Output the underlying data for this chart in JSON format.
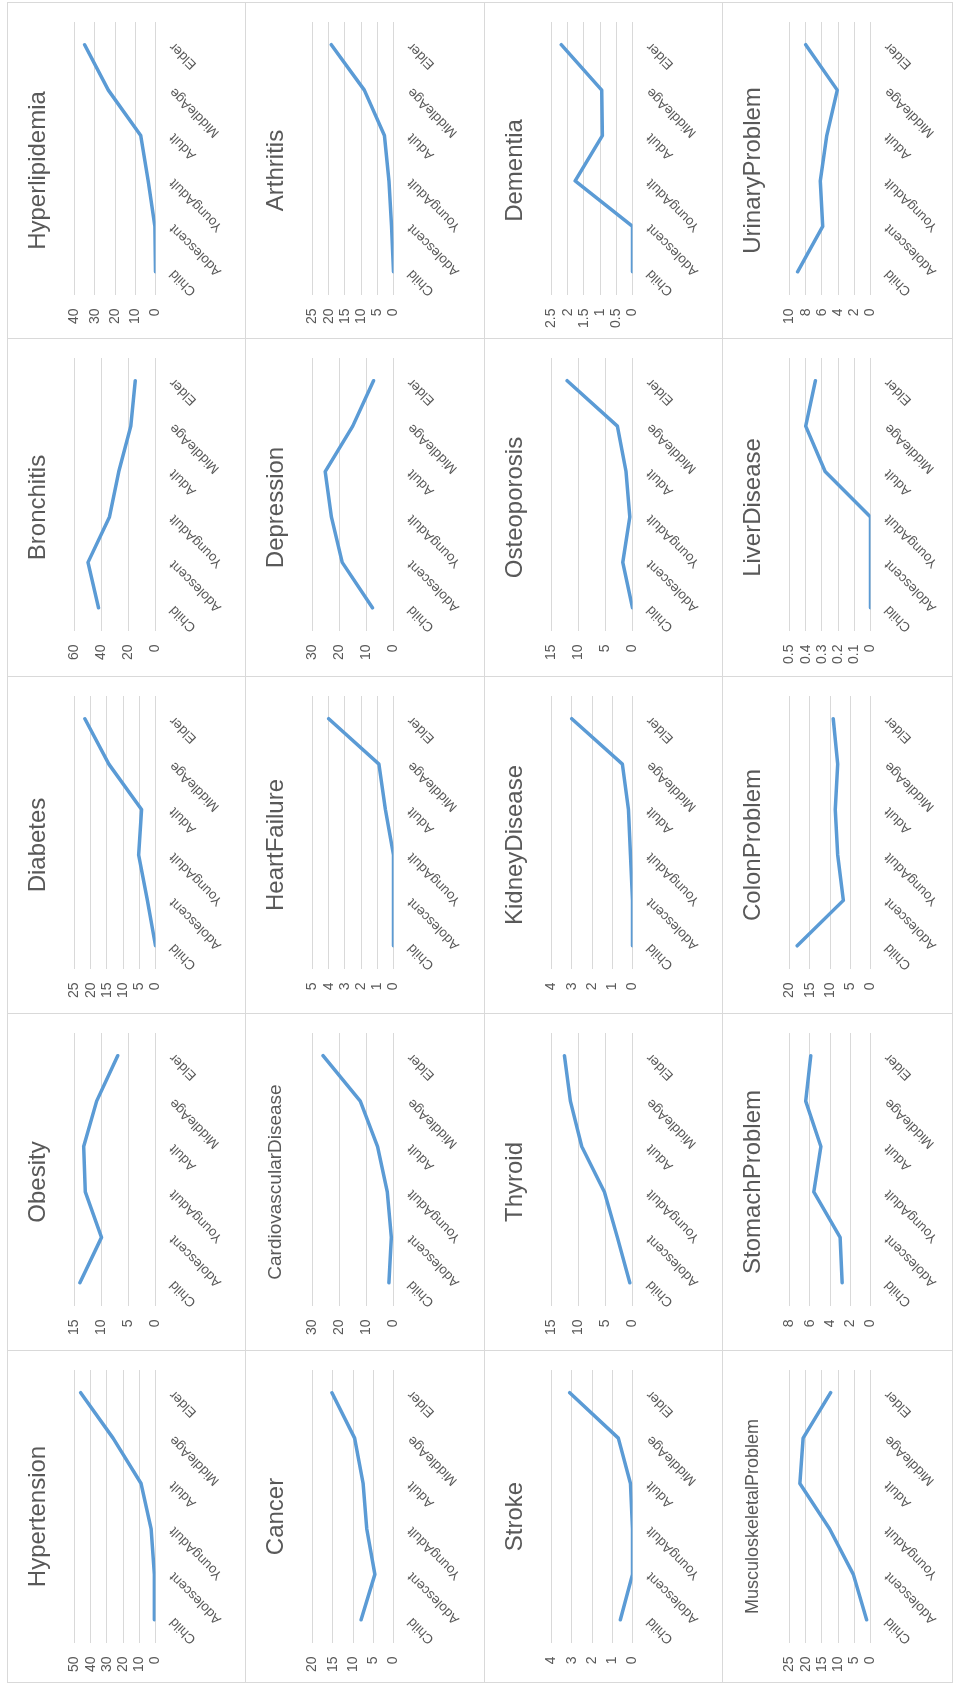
{
  "chart_data": [
    {
      "type": "line",
      "orientation": "horizontal",
      "title": "Hyperlipidemia",
      "categories": [
        "Elder",
        "MiddleAge",
        "Adult",
        "YoungAdult",
        "Adolescent",
        "Child"
      ],
      "values": [
        35,
        23.3,
        7.3,
        3.6,
        0.3,
        0
      ],
      "color": "#5b9bd5",
      "xlim": [
        40,
        0
      ],
      "xticks": [
        0,
        10,
        20,
        30,
        40
      ],
      "grid": "x"
    },
    {
      "type": "line",
      "orientation": "horizontal",
      "title": "Arthritis",
      "categories": [
        "Elder",
        "MiddleAge",
        "Adult",
        "YoungAdult",
        "Adolescent",
        "Child"
      ],
      "values": [
        19.2,
        9,
        2.8,
        1.4,
        0.6,
        0
      ],
      "color": "#5b9bd5",
      "xlim": [
        25,
        0
      ],
      "xticks": [
        0,
        5,
        10,
        15,
        20,
        25
      ],
      "grid": "x"
    },
    {
      "type": "line",
      "orientation": "horizontal",
      "title": "Dementia",
      "categories": [
        "Elder",
        "MiddleAge",
        "Adult",
        "YoungAdult",
        "Adolescent",
        "Child"
      ],
      "values": [
        2.2,
        0.95,
        0.93,
        1.77,
        0,
        0
      ],
      "color": "#5b9bd5",
      "xlim": [
        2.5,
        0
      ],
      "xticks": [
        0,
        0.5,
        1,
        1.5,
        2,
        2.5
      ],
      "grid": "x"
    },
    {
      "type": "line",
      "orientation": "horizontal",
      "title": "UrinaryProblem",
      "categories": [
        "Elder",
        "MiddleAge",
        "Adult",
        "YoungAdult",
        "Adolescent",
        "Child"
      ],
      "values": [
        8,
        4.1,
        5.4,
        6.2,
        5.9,
        9
      ],
      "color": "#5b9bd5",
      "xlim": [
        10,
        0
      ],
      "xticks": [
        0,
        2,
        4,
        6,
        8,
        10
      ],
      "grid": "x"
    },
    {
      "type": "line",
      "orientation": "horizontal",
      "title": "Bronchitis",
      "categories": [
        "Elder",
        "MiddleAge",
        "Adult",
        "YoungAdult",
        "Adolescent",
        "Child"
      ],
      "values": [
        15,
        18.3,
        27.2,
        34.1,
        50,
        42.2
      ],
      "color": "#5b9bd5",
      "xlim": [
        60,
        0
      ],
      "xticks": [
        0,
        20,
        40,
        60
      ],
      "grid": "x"
    },
    {
      "type": "line",
      "orientation": "horizontal",
      "title": "Depression",
      "categories": [
        "Elder",
        "MiddleAge",
        "Adult",
        "YoungAdult",
        "Adolescent",
        "Child"
      ],
      "values": [
        7.4,
        15.1,
        25.3,
        23,
        19,
        7.8
      ],
      "color": "#5b9bd5",
      "xlim": [
        30,
        0
      ],
      "xticks": [
        0,
        10,
        20,
        30
      ],
      "grid": "x"
    },
    {
      "type": "line",
      "orientation": "horizontal",
      "title": "Osteoporosis",
      "categories": [
        "Elder",
        "MiddleAge",
        "Adult",
        "YoungAdult",
        "Adolescent",
        "Child"
      ],
      "values": [
        12.1,
        2.8,
        1.2,
        0.5,
        1.8,
        0
      ],
      "color": "#5b9bd5",
      "xlim": [
        15,
        0
      ],
      "xticks": [
        0,
        5,
        10,
        15
      ],
      "grid": "x"
    },
    {
      "type": "line",
      "orientation": "horizontal",
      "title": "LiverDisease",
      "categories": [
        "Elder",
        "MiddleAge",
        "Adult",
        "YoungAdult",
        "Adolescent",
        "Child"
      ],
      "values": [
        0.34,
        0.4,
        0.28,
        0,
        0,
        0
      ],
      "color": "#5b9bd5",
      "xlim": [
        0.5,
        0
      ],
      "xticks": [
        0,
        0.1,
        0.2,
        0.3,
        0.4,
        0.5
      ],
      "grid": "x"
    },
    {
      "type": "line",
      "orientation": "horizontal",
      "title": "Diabetes",
      "categories": [
        "Elder",
        "MiddleAge",
        "Adult",
        "YoungAdult",
        "Adolescent",
        "Child"
      ],
      "values": [
        21.8,
        14.4,
        4.3,
        5.2,
        2.5,
        0
      ],
      "color": "#5b9bd5",
      "xlim": [
        25,
        0
      ],
      "xticks": [
        0,
        5,
        10,
        15,
        20,
        25
      ],
      "grid": "x"
    },
    {
      "type": "line",
      "orientation": "horizontal",
      "title": "HeartFailure",
      "categories": [
        "Elder",
        "MiddleAge",
        "Adult",
        "YoungAdult",
        "Adolescent",
        "Child"
      ],
      "values": [
        4,
        0.9,
        0.5,
        0,
        0,
        0
      ],
      "color": "#5b9bd5",
      "xlim": [
        5,
        0
      ],
      "xticks": [
        0,
        1,
        2,
        3,
        4,
        5
      ],
      "grid": "x"
    },
    {
      "type": "line",
      "orientation": "horizontal",
      "title": "KidneyDisease",
      "categories": [
        "Elder",
        "MiddleAge",
        "Adult",
        "YoungAdult",
        "Adolescent",
        "Child"
      ],
      "values": [
        3,
        0.5,
        0.2,
        0.1,
        0,
        0
      ],
      "color": "#5b9bd5",
      "xlim": [
        4,
        0
      ],
      "xticks": [
        0,
        1,
        2,
        3,
        4
      ],
      "grid": "x"
    },
    {
      "type": "line",
      "orientation": "horizontal",
      "title": "ColonProblem",
      "categories": [
        "Elder",
        "MiddleAge",
        "Adult",
        "YoungAdult",
        "Adolescent",
        "Child"
      ],
      "values": [
        9.2,
        8.1,
        8.7,
        8.1,
        6.7,
        18.1
      ],
      "color": "#5b9bd5",
      "xlim": [
        20,
        0
      ],
      "xticks": [
        0,
        5,
        10,
        15,
        20
      ],
      "grid": "x"
    },
    {
      "type": "line",
      "orientation": "horizontal",
      "title": "Obesity",
      "categories": [
        "Elder",
        "MiddleAge",
        "Adult",
        "YoungAdult",
        "Adolescent",
        "Child"
      ],
      "values": [
        7,
        10.9,
        13.3,
        13,
        10,
        14
      ],
      "color": "#5b9bd5",
      "xlim": [
        15,
        0
      ],
      "xticks": [
        0,
        5,
        10,
        15
      ],
      "grid": "x"
    },
    {
      "type": "line",
      "orientation": "horizontal",
      "title": "CardiovascularDisease",
      "categories": [
        "Elder",
        "MiddleAge",
        "Adult",
        "YoungAdult",
        "Adolescent",
        "Child"
      ],
      "values": [
        26.1,
        12.3,
        5.9,
        2.3,
        0.8,
        1.7
      ],
      "color": "#5b9bd5",
      "xlim": [
        30,
        0
      ],
      "xticks": [
        0,
        10,
        20,
        30
      ],
      "grid": "x"
    },
    {
      "type": "line",
      "orientation": "horizontal",
      "title": "Thyroid",
      "categories": [
        "Elder",
        "MiddleAge",
        "Adult",
        "YoungAdult",
        "Adolescent",
        "Child"
      ],
      "values": [
        12.6,
        11.5,
        9.4,
        5.2,
        2.8,
        0.5
      ],
      "color": "#5b9bd5",
      "xlim": [
        15,
        0
      ],
      "xticks": [
        0,
        5,
        10,
        15
      ],
      "grid": "x"
    },
    {
      "type": "line",
      "orientation": "horizontal",
      "title": "StomachProblem",
      "categories": [
        "Elder",
        "MiddleAge",
        "Adult",
        "YoungAdult",
        "Adolescent",
        "Child"
      ],
      "values": [
        5.9,
        6.4,
        4.9,
        5.6,
        3,
        2.8
      ],
      "color": "#5b9bd5",
      "xlim": [
        8,
        0
      ],
      "xticks": [
        0,
        2,
        4,
        6,
        8
      ],
      "grid": "x"
    },
    {
      "type": "line",
      "orientation": "horizontal",
      "title": "Hypertension",
      "categories": [
        "Elder",
        "MiddleAge",
        "Adult",
        "YoungAdult",
        "Adolescent",
        "Child"
      ],
      "values": [
        46.2,
        26.2,
        8.9,
        2.7,
        0.7,
        0.7
      ],
      "color": "#5b9bd5",
      "xlim": [
        50,
        0
      ],
      "xticks": [
        0,
        10,
        20,
        30,
        40,
        50
      ],
      "grid": "x"
    },
    {
      "type": "line",
      "orientation": "horizontal",
      "title": "Cancer",
      "categories": [
        "Elder",
        "MiddleAge",
        "Adult",
        "YoungAdult",
        "Adolescent",
        "Child"
      ],
      "values": [
        15.2,
        9.6,
        7.5,
        6.6,
        4.6,
        8
      ],
      "color": "#5b9bd5",
      "xlim": [
        20,
        0
      ],
      "xticks": [
        0,
        5,
        10,
        15,
        20
      ],
      "grid": "x"
    },
    {
      "type": "line",
      "orientation": "horizontal",
      "title": "Stroke",
      "categories": [
        "Elder",
        "MiddleAge",
        "Adult",
        "YoungAdult",
        "Adolescent",
        "Child"
      ],
      "values": [
        3.1,
        0.7,
        0.1,
        0,
        0,
        0.6
      ],
      "color": "#5b9bd5",
      "xlim": [
        4,
        0
      ],
      "xticks": [
        0,
        1,
        2,
        3,
        4
      ],
      "grid": "x"
    },
    {
      "type": "line",
      "orientation": "horizontal",
      "title": "MusculoskeletalProblem",
      "categories": [
        "Elder",
        "MiddleAge",
        "Adult",
        "YoungAdult",
        "Adolescent",
        "Child"
      ],
      "values": [
        12.3,
        20.8,
        21.8,
        12.6,
        5.3,
        1.2
      ],
      "color": "#5b9bd5",
      "xlim": [
        25,
        0
      ],
      "xticks": [
        0,
        5,
        10,
        15,
        20,
        25
      ],
      "grid": "x"
    }
  ]
}
